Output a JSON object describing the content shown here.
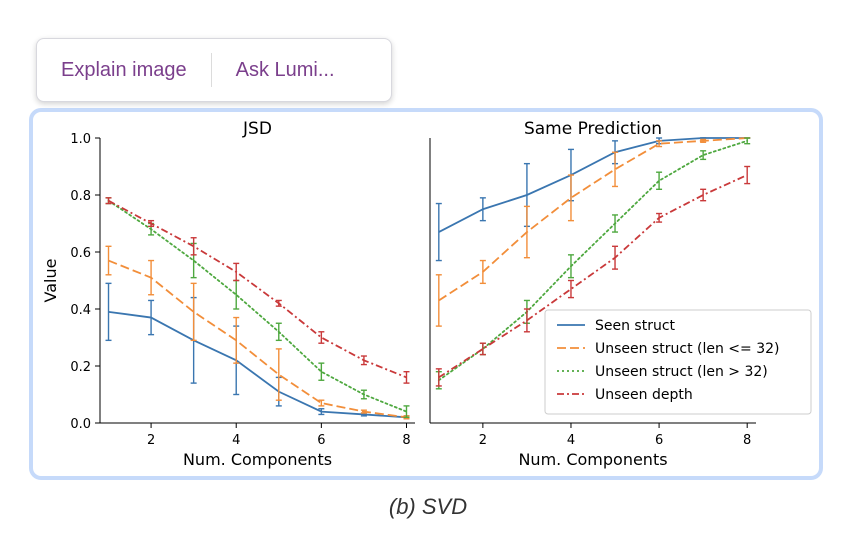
{
  "popup": {
    "explain_label": "Explain image",
    "ask_label": "Ask Lumi..."
  },
  "caption": "(b) SVD",
  "colors": {
    "seen": "#3a76b0",
    "unseen_short": "#f28e3a",
    "unseen_long": "#4ea83f",
    "unseen_depth": "#c9393a",
    "frame": "#c6dafa",
    "popup_text": "#7b3f8c"
  },
  "chart_data": [
    {
      "type": "line",
      "title": "JSD",
      "xlabel": "Num. Components",
      "ylabel": "Value",
      "xlim": [
        0.8,
        8.2
      ],
      "ylim": [
        0.0,
        1.0
      ],
      "xticks": [
        "2",
        "4",
        "6",
        "8"
      ],
      "yticks": [
        "0.0",
        "0.2",
        "0.4",
        "0.6",
        "0.8",
        "1.0"
      ],
      "x": [
        1,
        2,
        3,
        4,
        5,
        6,
        7,
        8
      ],
      "series": [
        {
          "name": "Seen struct",
          "style": "solid",
          "values": [
            0.39,
            0.37,
            0.29,
            0.22,
            0.11,
            0.04,
            0.03,
            0.02
          ],
          "errors": [
            0.1,
            0.06,
            0.15,
            0.12,
            0.05,
            0.01,
            0.005,
            0.005
          ]
        },
        {
          "name": "Unseen struct (len <= 32)",
          "style": "dashed",
          "values": [
            0.57,
            0.51,
            0.39,
            0.29,
            0.17,
            0.07,
            0.04,
            0.02
          ],
          "errors": [
            0.05,
            0.06,
            0.1,
            0.08,
            0.09,
            0.01,
            0.005,
            0.005
          ]
        },
        {
          "name": "Unseen struct (len > 32)",
          "style": "dotted",
          "values": [
            0.78,
            0.68,
            0.57,
            0.45,
            0.32,
            0.18,
            0.1,
            0.04
          ],
          "errors": [
            0.01,
            0.02,
            0.06,
            0.05,
            0.03,
            0.03,
            0.015,
            0.02
          ]
        },
        {
          "name": "Unseen depth",
          "style": "dashdot",
          "values": [
            0.78,
            0.7,
            0.62,
            0.53,
            0.42,
            0.3,
            0.22,
            0.16
          ],
          "errors": [
            0.01,
            0.01,
            0.03,
            0.03,
            0.01,
            0.02,
            0.015,
            0.02
          ]
        }
      ]
    },
    {
      "type": "line",
      "title": "Same Prediction",
      "xlabel": "Num. Components",
      "ylabel": "",
      "xlim": [
        0.8,
        8.2
      ],
      "ylim": [
        0.0,
        1.0
      ],
      "xticks": [
        "2",
        "4",
        "6",
        "8"
      ],
      "yticks": [],
      "x": [
        1,
        2,
        3,
        4,
        5,
        6,
        7,
        8
      ],
      "legend_position": "lower-right",
      "series": [
        {
          "name": "Seen struct",
          "style": "solid",
          "values": [
            0.67,
            0.75,
            0.8,
            0.87,
            0.95,
            0.99,
            1.0,
            1.0
          ],
          "errors": [
            0.1,
            0.04,
            0.11,
            0.09,
            0.04,
            0.01,
            0.0,
            0.0
          ]
        },
        {
          "name": "Unseen struct (len <= 32)",
          "style": "dashed",
          "values": [
            0.43,
            0.53,
            0.67,
            0.79,
            0.89,
            0.98,
            0.99,
            1.0
          ],
          "errors": [
            0.09,
            0.04,
            0.09,
            0.08,
            0.06,
            0.01,
            0.005,
            0.0
          ]
        },
        {
          "name": "Unseen struct (len > 32)",
          "style": "dotted",
          "values": [
            0.15,
            0.26,
            0.39,
            0.55,
            0.7,
            0.85,
            0.94,
            0.99
          ],
          "errors": [
            0.03,
            0.02,
            0.04,
            0.04,
            0.03,
            0.03,
            0.015,
            0.01
          ]
        },
        {
          "name": "Unseen depth",
          "style": "dashdot",
          "values": [
            0.16,
            0.26,
            0.36,
            0.47,
            0.58,
            0.72,
            0.8,
            0.87
          ],
          "errors": [
            0.03,
            0.02,
            0.04,
            0.03,
            0.04,
            0.015,
            0.02,
            0.03
          ]
        }
      ]
    }
  ]
}
